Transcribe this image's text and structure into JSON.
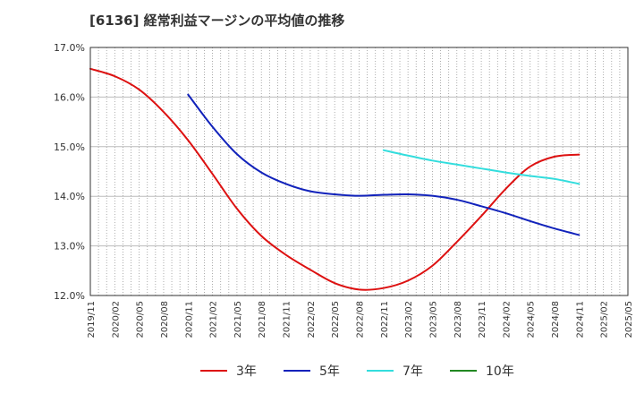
{
  "chart_data": {
    "type": "line",
    "title": "[6136]  経常利益マージンの平均値の推移",
    "xlabel": "",
    "ylabel": "",
    "y_unit": "%",
    "ylim": [
      12.0,
      17.0
    ],
    "y_ticks": [
      "12.0%",
      "13.0%",
      "14.0%",
      "15.0%",
      "16.0%",
      "17.0%"
    ],
    "x_ticks": [
      "2019/11",
      "2020/02",
      "2020/05",
      "2020/08",
      "2020/11",
      "2021/02",
      "2021/05",
      "2021/08",
      "2021/11",
      "2022/02",
      "2022/05",
      "2022/08",
      "2022/11",
      "2023/02",
      "2023/05",
      "2023/08",
      "2023/11",
      "2024/02",
      "2024/05",
      "2024/08",
      "2024/11",
      "2025/02",
      "2025/05"
    ],
    "x_range": [
      "2019/11",
      "2025/05"
    ],
    "grid": true,
    "legend_position": "bottom",
    "series": [
      {
        "name": "3年",
        "color": "#dd1111",
        "points": [
          [
            "2019/11",
            16.57
          ],
          [
            "2020/02",
            16.42
          ],
          [
            "2020/05",
            16.15
          ],
          [
            "2020/08",
            15.7
          ],
          [
            "2020/11",
            15.13
          ],
          [
            "2021/02",
            14.45
          ],
          [
            "2021/05",
            13.75
          ],
          [
            "2021/08",
            13.2
          ],
          [
            "2021/11",
            12.82
          ],
          [
            "2022/02",
            12.52
          ],
          [
            "2022/05",
            12.25
          ],
          [
            "2022/08",
            12.12
          ],
          [
            "2022/11",
            12.15
          ],
          [
            "2023/02",
            12.3
          ],
          [
            "2023/05",
            12.6
          ],
          [
            "2023/08",
            13.08
          ],
          [
            "2023/11",
            13.6
          ],
          [
            "2024/02",
            14.15
          ],
          [
            "2024/05",
            14.6
          ],
          [
            "2024/08",
            14.8
          ],
          [
            "2024/11",
            14.84
          ]
        ]
      },
      {
        "name": "5年",
        "color": "#1122bb",
        "points": [
          [
            "2020/11",
            16.05
          ],
          [
            "2021/02",
            15.4
          ],
          [
            "2021/05",
            14.85
          ],
          [
            "2021/08",
            14.48
          ],
          [
            "2021/11",
            14.25
          ],
          [
            "2022/02",
            14.1
          ],
          [
            "2022/05",
            14.04
          ],
          [
            "2022/08",
            14.01
          ],
          [
            "2022/11",
            14.03
          ],
          [
            "2023/02",
            14.04
          ],
          [
            "2023/05",
            14.01
          ],
          [
            "2023/08",
            13.93
          ],
          [
            "2023/11",
            13.8
          ],
          [
            "2024/02",
            13.66
          ],
          [
            "2024/05",
            13.5
          ],
          [
            "2024/08",
            13.35
          ],
          [
            "2024/11",
            13.22
          ]
        ]
      },
      {
        "name": "7年",
        "color": "#33dddd",
        "points": [
          [
            "2022/11",
            14.93
          ],
          [
            "2023/02",
            14.82
          ],
          [
            "2023/05",
            14.72
          ],
          [
            "2023/08",
            14.64
          ],
          [
            "2023/11",
            14.56
          ],
          [
            "2024/02",
            14.48
          ],
          [
            "2024/05",
            14.41
          ],
          [
            "2024/08",
            14.35
          ],
          [
            "2024/11",
            14.25
          ]
        ]
      },
      {
        "name": "10年",
        "color": "#228822",
        "points": []
      }
    ]
  }
}
